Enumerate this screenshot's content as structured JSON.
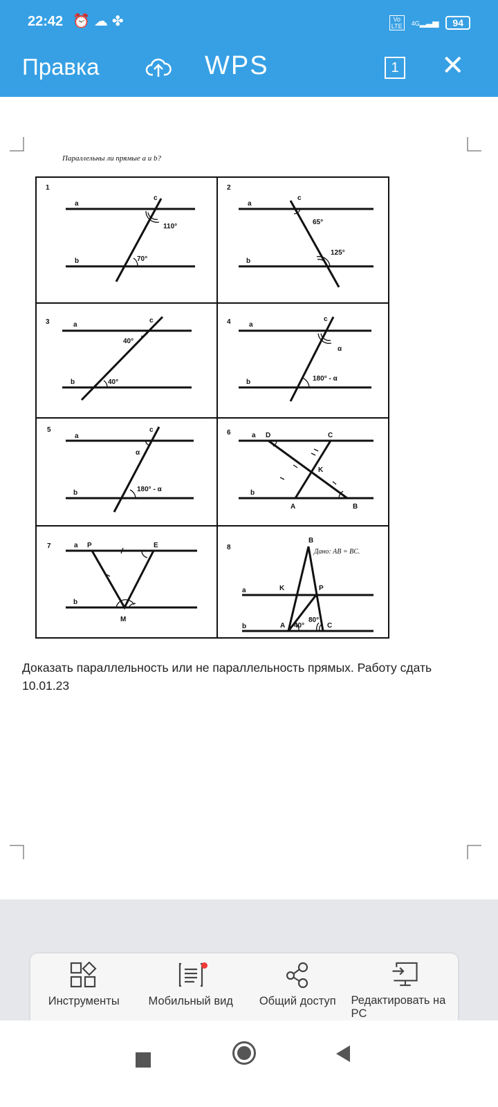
{
  "status": {
    "time": "22:42",
    "icons": [
      "alarm-icon",
      "cloud-icon",
      "fan-icon"
    ],
    "network": "4G",
    "volte": "Vo LTE",
    "battery": "94"
  },
  "header": {
    "title": "Правка",
    "logo": "WPS",
    "page_count": "1",
    "accent": "#37a0e4"
  },
  "document": {
    "heading": "Параллельны ли прямые a и b?",
    "cells": [
      {
        "num": "1",
        "labels": {
          "a": "a",
          "b": "b",
          "c": "c"
        },
        "angles": [
          "110°",
          "70°"
        ]
      },
      {
        "num": "2",
        "labels": {
          "a": "a",
          "b": "b",
          "c": "c"
        },
        "angles": [
          "65°",
          "125°"
        ]
      },
      {
        "num": "3",
        "labels": {
          "a": "a",
          "b": "b",
          "c": "c"
        },
        "angles": [
          "40°",
          "40°"
        ]
      },
      {
        "num": "4",
        "labels": {
          "a": "a",
          "b": "b",
          "c": "c"
        },
        "angles": [
          "α",
          "180° - α"
        ]
      },
      {
        "num": "5",
        "labels": {
          "a": "a",
          "b": "b",
          "c": "c"
        },
        "angles": [
          "α",
          "180° - α"
        ]
      },
      {
        "num": "6",
        "labels": {
          "a": "a",
          "b": "b",
          "D": "D",
          "C": "C",
          "K": "K",
          "A": "A",
          "B": "B"
        }
      },
      {
        "num": "7",
        "labels": {
          "a": "a",
          "b": "b",
          "P": "P",
          "E": "E",
          "M": "M"
        }
      },
      {
        "num": "8",
        "labels": {
          "a": "a",
          "b": "b",
          "B": "B",
          "K": "K",
          "P": "P",
          "A": "A",
          "C": "C"
        },
        "angles": [
          "40°",
          "80°"
        ],
        "given": "Дано: AB = BC."
      }
    ],
    "description": "Доказать параллельность или не параллельность прямых. Работу сдать 10.01.23"
  },
  "toolbar": [
    {
      "label": "Инструменты",
      "icon": "tools-icon"
    },
    {
      "label": "Мобильный вид",
      "icon": "mobile-view-icon"
    },
    {
      "label": "Общий доступ",
      "icon": "share-icon"
    },
    {
      "label": "Редактировать на PC",
      "icon": "edit-on-pc-icon"
    }
  ]
}
